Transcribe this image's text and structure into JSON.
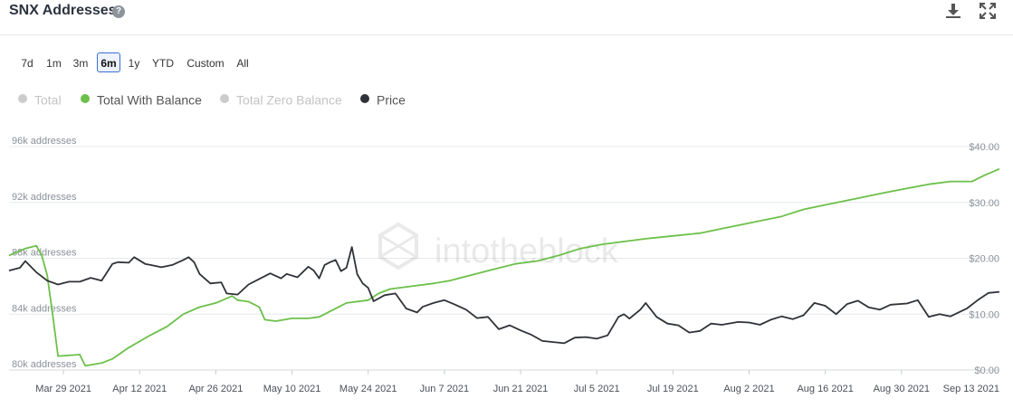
{
  "header": {
    "title": "SNX Addresses",
    "help_icon": "?"
  },
  "toolbar": {
    "download_icon": "download-icon",
    "expand_icon": "expand-icon"
  },
  "ranges": [
    {
      "label": "7d",
      "active": false
    },
    {
      "label": "1m",
      "active": false
    },
    {
      "label": "3m",
      "active": false
    },
    {
      "label": "6m",
      "active": true
    },
    {
      "label": "1y",
      "active": false
    },
    {
      "label": "YTD",
      "active": false
    },
    {
      "label": "Custom",
      "active": false
    },
    {
      "label": "All",
      "active": false
    }
  ],
  "legend": [
    {
      "label": "Total",
      "color": "#cccccc",
      "enabled": false
    },
    {
      "label": "Total With Balance",
      "color": "#6cc04a",
      "enabled": true
    },
    {
      "label": "Total Zero Balance",
      "color": "#cccccc",
      "enabled": false
    },
    {
      "label": "Price",
      "color": "#2f3237",
      "enabled": true
    }
  ],
  "watermark": "intotheblock",
  "chart_data": {
    "type": "line",
    "y_left": {
      "ticks": [
        "80k addresses",
        "84k addresses",
        "88k addresses",
        "92k addresses",
        "96k addresses"
      ],
      "range": [
        80000,
        96000
      ]
    },
    "y_right": {
      "ticks": [
        "$0.00",
        "$10.00",
        "$20.00",
        "$30.00",
        "$40.00"
      ],
      "range": [
        0,
        40
      ]
    },
    "x_ticks": [
      "Mar 29 2021",
      "Apr 12 2021",
      "Apr 26 2021",
      "May 10 2021",
      "May 24 2021",
      "Jun 7 2021",
      "Jun 21 2021",
      "Jul 5 2021",
      "Jul 19 2021",
      "Aug 2 2021",
      "Aug 16 2021",
      "Aug 30 2021",
      "Sep 13 2021"
    ],
    "x_range": [
      "Mar 19 2021",
      "Sep 17 2021"
    ],
    "grid": true,
    "series": [
      {
        "name": "Total With Balance",
        "axis": "left",
        "color": "#6cc04a",
        "points": [
          [
            "Mar 19 2021",
            88200
          ],
          [
            "Mar 22 2021",
            88700
          ],
          [
            "Mar 24 2021",
            88900
          ],
          [
            "Mar 25 2021",
            88200
          ],
          [
            "Mar 26 2021",
            86800
          ],
          [
            "Mar 27 2021",
            84000
          ],
          [
            "Mar 28 2021",
            81000
          ],
          [
            "Apr 1 2021",
            81100
          ],
          [
            "Apr 2 2021",
            80300
          ],
          [
            "Apr 5 2021",
            80500
          ],
          [
            "Apr 7 2021",
            80800
          ],
          [
            "Apr 10 2021",
            81600
          ],
          [
            "Apr 14 2021",
            82500
          ],
          [
            "Apr 17 2021",
            83100
          ],
          [
            "Apr 20 2021",
            84000
          ],
          [
            "Apr 23 2021",
            84500
          ],
          [
            "Apr 26 2021",
            84800
          ],
          [
            "Apr 29 2021",
            85300
          ],
          [
            "Apr 30 2021",
            85000
          ],
          [
            "May 2 2021",
            84900
          ],
          [
            "May 4 2021",
            84500
          ],
          [
            "May 5 2021",
            83600
          ],
          [
            "May 7 2021",
            83500
          ],
          [
            "May 10 2021",
            83700
          ],
          [
            "May 13 2021",
            83700
          ],
          [
            "May 15 2021",
            83800
          ],
          [
            "May 17 2021",
            84200
          ],
          [
            "May 20 2021",
            84800
          ],
          [
            "May 24 2021",
            85000
          ],
          [
            "May 26 2021",
            85500
          ],
          [
            "May 28 2021",
            85800
          ],
          [
            "Jun 1 2021",
            86000
          ],
          [
            "Jun 5 2021",
            86200
          ],
          [
            "Jun 8 2021",
            86400
          ],
          [
            "Jun 12 2021",
            86800
          ],
          [
            "Jun 16 2021",
            87200
          ],
          [
            "Jun 20 2021",
            87600
          ],
          [
            "Jun 24 2021",
            87800
          ],
          [
            "Jun 28 2021",
            88200
          ],
          [
            "Jul 2 2021",
            88700
          ],
          [
            "Jul 6 2021",
            89000
          ],
          [
            "Jul 10 2021",
            89200
          ],
          [
            "Jul 14 2021",
            89400
          ],
          [
            "Jul 19 2021",
            89600
          ],
          [
            "Jul 24 2021",
            89800
          ],
          [
            "Jul 29 2021",
            90200
          ],
          [
            "Aug 3 2021",
            90600
          ],
          [
            "Aug 8 2021",
            91000
          ],
          [
            "Aug 12 2021",
            91500
          ],
          [
            "Aug 17 2021",
            91900
          ],
          [
            "Aug 22 2021",
            92300
          ],
          [
            "Aug 27 2021",
            92700
          ],
          [
            "Aug 31 2021",
            93000
          ],
          [
            "Sep 4 2021",
            93300
          ],
          [
            "Sep 8 2021",
            93500
          ],
          [
            "Sep 12 2021",
            93500
          ],
          [
            "Sep 14 2021",
            93900
          ],
          [
            "Sep 17 2021",
            94400
          ]
        ]
      },
      {
        "name": "Price",
        "axis": "right",
        "color": "#2f3237",
        "points": [
          [
            "Mar 19 2021",
            17.8
          ],
          [
            "Mar 21 2021",
            18.3
          ],
          [
            "Mar 22 2021",
            19.5
          ],
          [
            "Mar 24 2021",
            17.5
          ],
          [
            "Mar 26 2021",
            16.0
          ],
          [
            "Mar 28 2021",
            15.3
          ],
          [
            "Mar 30 2021",
            15.8
          ],
          [
            "Apr 1 2021",
            15.8
          ],
          [
            "Apr 3 2021",
            16.5
          ],
          [
            "Apr 5 2021",
            16.0
          ],
          [
            "Apr 7 2021",
            19.0
          ],
          [
            "Apr 8 2021",
            19.3
          ],
          [
            "Apr 10 2021",
            19.2
          ],
          [
            "Apr 11 2021",
            20.2
          ],
          [
            "Apr 13 2021",
            19.0
          ],
          [
            "Apr 14 2021",
            18.8
          ],
          [
            "Apr 16 2021",
            18.4
          ],
          [
            "Apr 18 2021",
            18.8
          ],
          [
            "Apr 20 2021",
            19.7
          ],
          [
            "Apr 21 2021",
            20.2
          ],
          [
            "Apr 22 2021",
            19.3
          ],
          [
            "Apr 23 2021",
            17.2
          ],
          [
            "Apr 25 2021",
            15.5
          ],
          [
            "Apr 27 2021",
            15.7
          ],
          [
            "Apr 28 2021",
            13.7
          ],
          [
            "Apr 30 2021",
            13.5
          ],
          [
            "May 2 2021",
            15.3
          ],
          [
            "May 4 2021",
            16.3
          ],
          [
            "May 6 2021",
            17.3
          ],
          [
            "May 8 2021",
            16.4
          ],
          [
            "May 9 2021",
            17.2
          ],
          [
            "May 11 2021",
            16.6
          ],
          [
            "May 13 2021",
            18.5
          ],
          [
            "May 14 2021",
            17.8
          ],
          [
            "May 15 2021",
            16.4
          ],
          [
            "May 16 2021",
            18.8
          ],
          [
            "May 17 2021",
            19.3
          ],
          [
            "May 18 2021",
            19.7
          ],
          [
            "May 19 2021",
            17.7
          ],
          [
            "May 20 2021",
            18.3
          ],
          [
            "May 21 2021",
            22.0
          ],
          [
            "May 22 2021",
            17.1
          ],
          [
            "May 23 2021",
            15.5
          ],
          [
            "May 24 2021",
            14.7
          ],
          [
            "May 25 2021",
            12.3
          ],
          [
            "May 27 2021",
            13.4
          ],
          [
            "May 29 2021",
            13.7
          ],
          [
            "May 31 2021",
            11.0
          ],
          [
            "Jun 2 2021",
            10.3
          ],
          [
            "Jun 3 2021",
            11.3
          ],
          [
            "Jun 5 2021",
            12.0
          ],
          [
            "Jun 7 2021",
            12.5
          ],
          [
            "Jun 9 2021",
            11.7
          ],
          [
            "Jun 11 2021",
            10.8
          ],
          [
            "Jun 13 2021",
            9.3
          ],
          [
            "Jun 15 2021",
            9.5
          ],
          [
            "Jun 17 2021",
            7.3
          ],
          [
            "Jun 19 2021",
            8.0
          ],
          [
            "Jun 21 2021",
            7.1
          ],
          [
            "Jun 23 2021",
            6.3
          ],
          [
            "Jun 25 2021",
            5.2
          ],
          [
            "Jun 27 2021",
            5.0
          ],
          [
            "Jun 29 2021",
            4.8
          ],
          [
            "Jul 1 2021",
            5.8
          ],
          [
            "Jul 3 2021",
            5.9
          ],
          [
            "Jul 5 2021",
            5.6
          ],
          [
            "Jul 7 2021",
            6.2
          ],
          [
            "Jul 9 2021",
            9.5
          ],
          [
            "Jul 10 2021",
            10.0
          ],
          [
            "Jul 11 2021",
            9.2
          ],
          [
            "Jul 13 2021",
            10.8
          ],
          [
            "Jul 14 2021",
            12.0
          ],
          [
            "Jul 16 2021",
            9.5
          ],
          [
            "Jul 18 2021",
            8.3
          ],
          [
            "Jul 20 2021",
            8.0
          ],
          [
            "Jul 22 2021",
            6.7
          ],
          [
            "Jul 24 2021",
            7.0
          ],
          [
            "Jul 26 2021",
            8.3
          ],
          [
            "Jul 28 2021",
            8.1
          ],
          [
            "Jul 31 2021",
            8.6
          ],
          [
            "Aug 2 2021",
            8.5
          ],
          [
            "Aug 4 2021",
            8.1
          ],
          [
            "Aug 6 2021",
            9.0
          ],
          [
            "Aug 8 2021",
            9.6
          ],
          [
            "Aug 10 2021",
            9.1
          ],
          [
            "Aug 12 2021",
            9.8
          ],
          [
            "Aug 14 2021",
            12.0
          ],
          [
            "Aug 16 2021",
            11.5
          ],
          [
            "Aug 18 2021",
            10.0
          ],
          [
            "Aug 20 2021",
            11.8
          ],
          [
            "Aug 22 2021",
            12.4
          ],
          [
            "Aug 24 2021",
            11.2
          ],
          [
            "Aug 26 2021",
            10.8
          ],
          [
            "Aug 28 2021",
            11.7
          ],
          [
            "Aug 31 2021",
            11.9
          ],
          [
            "Sep 2 2021",
            12.5
          ],
          [
            "Sep 4 2021",
            9.5
          ],
          [
            "Sep 6 2021",
            10.0
          ],
          [
            "Sep 8 2021",
            9.6
          ],
          [
            "Sep 11 2021",
            11.0
          ],
          [
            "Sep 13 2021",
            12.5
          ],
          [
            "Sep 15 2021",
            13.8
          ],
          [
            "Sep 17 2021",
            14.0
          ]
        ]
      }
    ]
  }
}
